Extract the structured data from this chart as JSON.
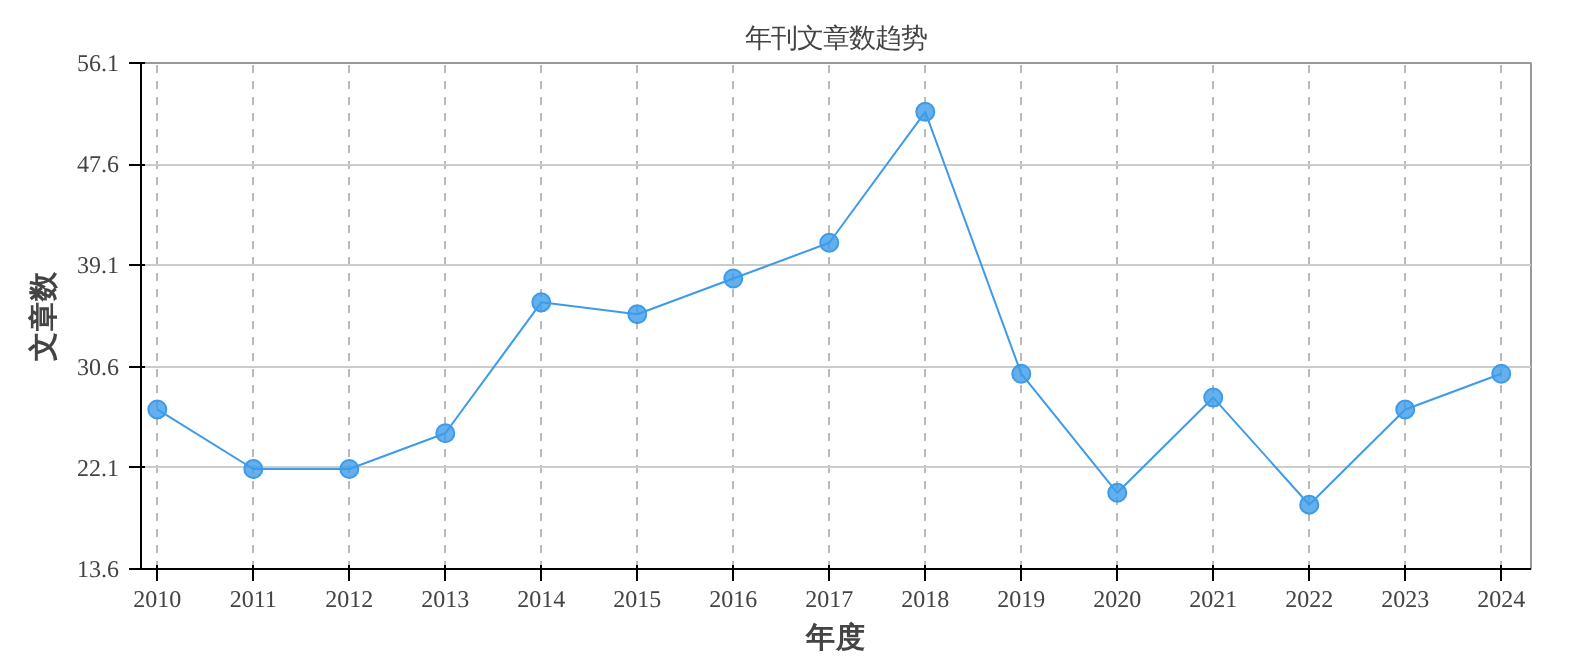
{
  "chart_data": {
    "type": "line",
    "title": "年刊文章数趋势",
    "xlabel": "年度",
    "ylabel": "文章数",
    "categories": [
      "2010",
      "2011",
      "2012",
      "2013",
      "2014",
      "2015",
      "2016",
      "2017",
      "2018",
      "2019",
      "2020",
      "2021",
      "2022",
      "2023",
      "2024"
    ],
    "series": [
      {
        "color": "#3d9be9",
        "values": [
          27,
          22,
          22,
          25,
          36,
          35,
          38,
          41,
          52,
          30,
          20,
          28,
          19,
          27,
          30
        ]
      }
    ],
    "ylim": [
      13.6,
      56.1
    ],
    "yticks": [
      13.6,
      22.1,
      30.6,
      39.1,
      47.6,
      56.1
    ],
    "grid": true,
    "marker": "circle",
    "line_style": "solid"
  }
}
